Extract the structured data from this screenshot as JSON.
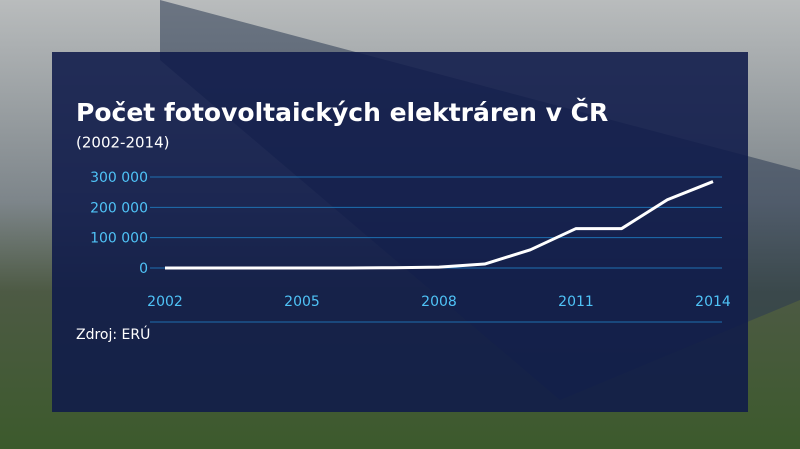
{
  "chart_data": {
    "type": "line",
    "title": "Počet fotovoltaických elektráren v ČR",
    "subtitle": "(2002-2014)",
    "source": "Zdroj: ERÚ",
    "x": [
      2002,
      2003,
      2004,
      2005,
      2006,
      2007,
      2008,
      2009,
      2010,
      2011,
      2012,
      2013,
      2014
    ],
    "series": [
      {
        "color": "#ffffff",
        "values": [
          0,
          0,
          0,
          0,
          0,
          1000,
          3000,
          13000,
          60000,
          130000,
          130000,
          225000,
          285000
        ]
      }
    ],
    "xlim": [
      2002,
      2014
    ],
    "xticks": [
      2002,
      2005,
      2008,
      2011,
      2014
    ],
    "ylim": [
      0,
      300000
    ],
    "yticks": [
      0,
      {
        "value": 100000,
        "label": "100 000"
      },
      {
        "value": 200000,
        "label": "200 000"
      },
      {
        "value": 300000,
        "label": "300 000"
      }
    ],
    "grid": true
  }
}
